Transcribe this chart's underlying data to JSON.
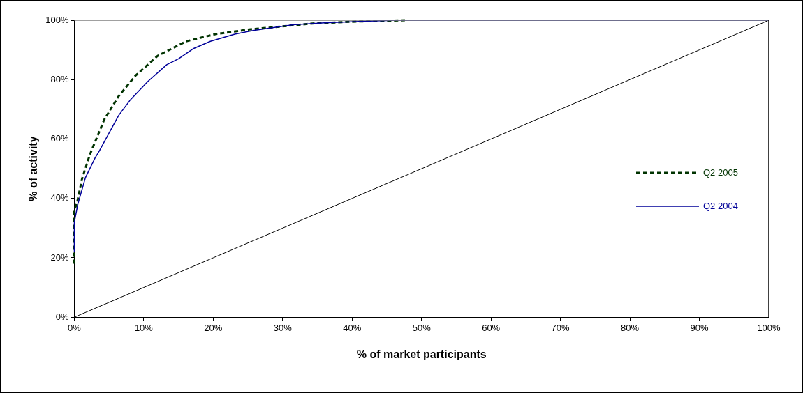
{
  "chart_data": {
    "type": "line",
    "xlabel": "% of market participants",
    "ylabel": "% of activity",
    "xlim": [
      0,
      100
    ],
    "ylim": [
      0,
      100
    ],
    "xticks": [
      {
        "value": 0,
        "label": "0%"
      },
      {
        "value": 10,
        "label": "10%"
      },
      {
        "value": 20,
        "label": "20%"
      },
      {
        "value": 30,
        "label": "30%"
      },
      {
        "value": 40,
        "label": "40%"
      },
      {
        "value": 50,
        "label": "50%"
      },
      {
        "value": 60,
        "label": "60%"
      },
      {
        "value": 70,
        "label": "70%"
      },
      {
        "value": 80,
        "label": "80%"
      },
      {
        "value": 90,
        "label": "90%"
      },
      {
        "value": 100,
        "label": "100%"
      }
    ],
    "yticks": [
      {
        "value": 0,
        "label": "0%"
      },
      {
        "value": 20,
        "label": "20%"
      },
      {
        "value": 40,
        "label": "40%"
      },
      {
        "value": 60,
        "label": "60%"
      },
      {
        "value": 80,
        "label": "80%"
      },
      {
        "value": 100,
        "label": "100%"
      }
    ],
    "grid": false,
    "legend": "right",
    "marker": "none",
    "series": [
      {
        "name": "Q2 2005",
        "color": "#003300",
        "line_style": "dashed",
        "x": [
          0,
          0,
          0.4,
          1.1,
          2.2,
          4.3,
          6.4,
          8.8,
          12,
          16.1,
          20.3,
          25.2,
          28,
          34.3,
          40,
          47.6
        ],
        "values": [
          18,
          36,
          38.6,
          46.5,
          54.5,
          66.5,
          74.5,
          81.3,
          88,
          92.9,
          95.3,
          96.9,
          97.5,
          98.9,
          99.5,
          100
        ]
      },
      {
        "name": "Q2 2004",
        "color": "#000099",
        "line_style": "solid",
        "x": [
          0,
          0,
          0.5,
          1.6,
          3,
          3.6,
          5,
          6.4,
          8,
          10.6,
          13.3,
          15,
          17.2,
          19.6,
          23.1,
          25.6,
          28,
          31.5,
          36,
          41,
          46.5,
          100
        ],
        "values": [
          22,
          32,
          38,
          47,
          53.7,
          56,
          62,
          68,
          73,
          79.4,
          85,
          87,
          90.5,
          92.9,
          95.3,
          96.5,
          97.3,
          98.5,
          99.1,
          99.6,
          100,
          100
        ]
      },
      {
        "color": "#000000",
        "line_style": "solid",
        "x": [
          0,
          10,
          20,
          30,
          40,
          50,
          60,
          70,
          80,
          90,
          100
        ],
        "values": [
          0,
          10,
          20,
          30,
          40,
          50,
          60,
          70,
          80,
          90,
          100
        ]
      }
    ]
  }
}
